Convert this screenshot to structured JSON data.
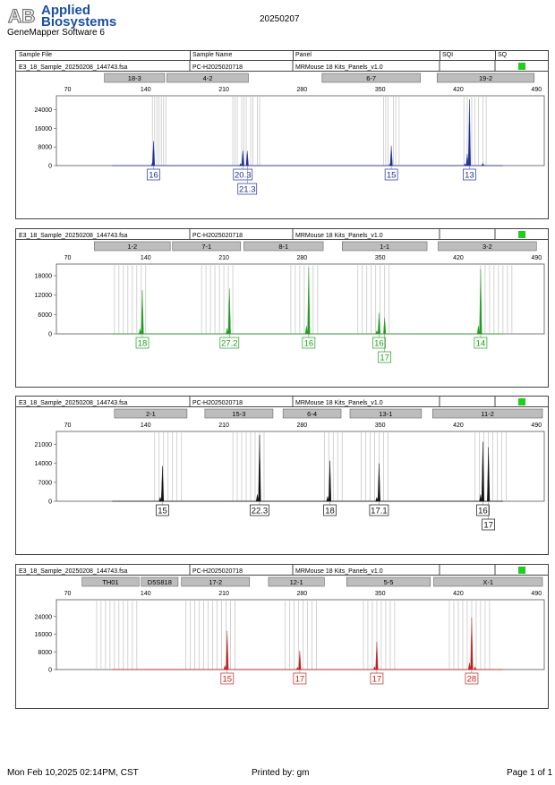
{
  "header": {
    "logo_mark": "AB",
    "logo_line1": "Applied",
    "logo_line2": "Biosystems",
    "software": "GeneMapper Software 6",
    "date": "20250207",
    "columns": [
      "Sample File",
      "Sample Name",
      "Panel",
      "SQI",
      "SQ"
    ]
  },
  "footer": {
    "printed_at": "Mon Feb 10,2025 02:14PM, CST",
    "printed_by": "Printed by: gm",
    "page": "Page 1 of 1"
  },
  "colors": {
    "blue": "#1f2f96",
    "green": "#1f9d1f",
    "black": "#111111",
    "red": "#c02020",
    "sq_ok": "#22cc22"
  },
  "chart_data": [
    {
      "type": "line",
      "sample_file": "E3_18_Sample_20250208_144743.fsa",
      "sample_name": "PC-H2025020718",
      "panel": "MRMouse 18 Kits_Panels_v1.0",
      "color": "blue",
      "x_ticks": [
        70,
        140,
        210,
        280,
        350,
        420,
        490
      ],
      "y_ticks": [
        0,
        8000,
        16000,
        24000
      ],
      "xlim": [
        60,
        497
      ],
      "ylim": [
        0,
        28500
      ],
      "markers": [
        {
          "label": "18-3",
          "start": 103,
          "end": 157
        },
        {
          "label": "4-2",
          "start": 159,
          "end": 232
        },
        {
          "label": "6-7",
          "start": 298,
          "end": 386
        },
        {
          "label": "19-2",
          "start": 401,
          "end": 488
        }
      ],
      "bins": [
        [
          146,
          148,
          150,
          152,
          154,
          156,
          158
        ],
        [
          218,
          220,
          222,
          226,
          228,
          230,
          234,
          236,
          240,
          242
        ],
        [
          353,
          355,
          357,
          362,
          364,
          367
        ],
        [
          425,
          428,
          432,
          435,
          438,
          442,
          445
        ]
      ],
      "peaks": [
        {
          "x": 147,
          "h": 10500
        },
        {
          "x": 146,
          "h": 1200
        },
        {
          "x": 227,
          "h": 6500
        },
        {
          "x": 231,
          "h": 6300
        },
        {
          "x": 225,
          "h": 900
        },
        {
          "x": 360,
          "h": 8500
        },
        {
          "x": 359,
          "h": 900
        },
        {
          "x": 430,
          "h": 28500
        },
        {
          "x": 428,
          "h": 5000
        },
        {
          "x": 426,
          "h": 800
        },
        {
          "x": 442,
          "h": 1000
        }
      ],
      "allele_labels": [
        {
          "text": "16",
          "x": 147,
          "row": 0
        },
        {
          "text": "20.3",
          "x": 227,
          "row": 0
        },
        {
          "text": "21.3",
          "x": 231,
          "row": 1
        },
        {
          "text": "15",
          "x": 360,
          "row": 0
        },
        {
          "text": "13",
          "x": 430,
          "row": 0
        }
      ]
    },
    {
      "type": "line",
      "sample_file": "E3_18_Sample_20250208_144743.fsa",
      "sample_name": "PC-H2025020718",
      "panel": "MRMouse 18 Kits_Panels_v1.0",
      "color": "green",
      "x_ticks": [
        70,
        140,
        210,
        280,
        350,
        420,
        490
      ],
      "y_ticks": [
        0,
        6000,
        12000,
        18000
      ],
      "xlim": [
        60,
        497
      ],
      "ylim": [
        0,
        20500
      ],
      "markers": [
        {
          "label": "1-2",
          "start": 94,
          "end": 162
        },
        {
          "label": "7-1",
          "start": 164,
          "end": 225
        },
        {
          "label": "8-1",
          "start": 228,
          "end": 299
        },
        {
          "label": "1-1",
          "start": 316,
          "end": 392
        },
        {
          "label": "3-2",
          "start": 402,
          "end": 490
        }
      ],
      "bins": [
        [
          112,
          116,
          120,
          124,
          128,
          132,
          136,
          140
        ],
        [
          190,
          194,
          198,
          202,
          206,
          210,
          214,
          218
        ],
        [
          270,
          274,
          278,
          282,
          286,
          290,
          294
        ],
        [
          330,
          334,
          338,
          342,
          346,
          350,
          354,
          358
        ],
        [
          440,
          444,
          448,
          452,
          456,
          460,
          464,
          468
        ]
      ],
      "peaks": [
        {
          "x": 137,
          "h": 13500
        },
        {
          "x": 135,
          "h": 1500
        },
        {
          "x": 215,
          "h": 14000
        },
        {
          "x": 213,
          "h": 1800
        },
        {
          "x": 286,
          "h": 20500
        },
        {
          "x": 284,
          "h": 2500
        },
        {
          "x": 349,
          "h": 6500
        },
        {
          "x": 354,
          "h": 5000
        },
        {
          "x": 347,
          "h": 1000
        },
        {
          "x": 440,
          "h": 20000
        },
        {
          "x": 438,
          "h": 2500
        }
      ],
      "allele_labels": [
        {
          "text": "18",
          "x": 137,
          "row": 0
        },
        {
          "text": "27.2",
          "x": 215,
          "row": 0
        },
        {
          "text": "16",
          "x": 286,
          "row": 0
        },
        {
          "text": "16",
          "x": 349,
          "row": 0
        },
        {
          "text": "17",
          "x": 354,
          "row": 1
        },
        {
          "text": "14",
          "x": 440,
          "row": 0
        }
      ]
    },
    {
      "type": "line",
      "sample_file": "E3_18_Sample_20250208_144743.fsa",
      "sample_name": "PC-H2025020718",
      "panel": "MRMouse 18 Kits_Panels_v1.0",
      "color": "black",
      "x_ticks": [
        70,
        140,
        210,
        280,
        350,
        420,
        490
      ],
      "y_ticks": [
        0,
        7000,
        14000,
        21000
      ],
      "xlim": [
        60,
        497
      ],
      "ylim": [
        0,
        24500
      ],
      "markers": [
        {
          "label": "2-1",
          "start": 112,
          "end": 177
        },
        {
          "label": "15-3",
          "start": 193,
          "end": 254
        },
        {
          "label": "6-4",
          "start": 263,
          "end": 315
        },
        {
          "label": "13-1",
          "start": 323,
          "end": 387
        },
        {
          "label": "11-2",
          "start": 397,
          "end": 507
        }
      ],
      "bins": [
        [
          148,
          152,
          156,
          160,
          164,
          168,
          172
        ],
        [
          218,
          222,
          226,
          230,
          234,
          238,
          242,
          246
        ],
        [
          300,
          304,
          308,
          312,
          316
        ],
        [
          333,
          337,
          341,
          345,
          349,
          353,
          357
        ],
        [
          435,
          439,
          443,
          447,
          451,
          455,
          459,
          463
        ]
      ],
      "peaks": [
        {
          "x": 155,
          "h": 13000
        },
        {
          "x": 153,
          "h": 1500
        },
        {
          "x": 242,
          "h": 24500
        },
        {
          "x": 240,
          "h": 2500
        },
        {
          "x": 305,
          "h": 15000
        },
        {
          "x": 303,
          "h": 1800
        },
        {
          "x": 349,
          "h": 14000
        },
        {
          "x": 347,
          "h": 1500
        },
        {
          "x": 442,
          "h": 22000
        },
        {
          "x": 447,
          "h": 20000
        },
        {
          "x": 440,
          "h": 2500
        }
      ],
      "allele_labels": [
        {
          "text": "15",
          "x": 155,
          "row": 0
        },
        {
          "text": "22.3",
          "x": 242,
          "row": 0
        },
        {
          "text": "18",
          "x": 305,
          "row": 0
        },
        {
          "text": "17.1",
          "x": 349,
          "row": 0
        },
        {
          "text": "16",
          "x": 442,
          "row": 0
        },
        {
          "text": "17",
          "x": 447,
          "row": 1
        }
      ]
    },
    {
      "type": "line",
      "sample_file": "E3_18_Sample_20250208_144743.fsa",
      "sample_name": "PC-H2025020718",
      "panel": "MRMouse 18 Kits_Panels_v1.0",
      "color": "red",
      "x_ticks": [
        70,
        140,
        210,
        280,
        350,
        420,
        490
      ],
      "y_ticks": [
        0,
        8000,
        16000,
        24000
      ],
      "xlim": [
        60,
        497
      ],
      "ylim": [
        0,
        30000
      ],
      "markers": [
        {
          "label": "TH01",
          "start": 83,
          "end": 134
        },
        {
          "label": "D5S818",
          "start": 136,
          "end": 169
        },
        {
          "label": "17-2",
          "start": 172,
          "end": 233
        },
        {
          "label": "12-1",
          "start": 250,
          "end": 300
        },
        {
          "label": "5-5",
          "start": 320,
          "end": 395
        },
        {
          "label": "X-1",
          "start": 398,
          "end": 498
        }
      ],
      "bins": [
        [
          96,
          100,
          104,
          108,
          112,
          116,
          120,
          124,
          128,
          132
        ],
        [
          176,
          180,
          184,
          188,
          192,
          196,
          200,
          204,
          208,
          212,
          216,
          220
        ],
        [
          265,
          269,
          273,
          277,
          281,
          285,
          289,
          293
        ],
        [
          335,
          339,
          343,
          347,
          351,
          355,
          359,
          363
        ],
        [
          412,
          416,
          420,
          424,
          428,
          432,
          436,
          440,
          444,
          448
        ]
      ],
      "peaks": [
        {
          "x": 213,
          "h": 17500
        },
        {
          "x": 211,
          "h": 1800
        },
        {
          "x": 278,
          "h": 8500
        },
        {
          "x": 276,
          "h": 1000
        },
        {
          "x": 347,
          "h": 12500
        },
        {
          "x": 345,
          "h": 1300
        },
        {
          "x": 432,
          "h": 23500
        },
        {
          "x": 430,
          "h": 3000
        },
        {
          "x": 435,
          "h": 1200
        }
      ],
      "allele_labels": [
        {
          "text": "15",
          "x": 213,
          "row": 0
        },
        {
          "text": "17",
          "x": 278,
          "row": 0
        },
        {
          "text": "17",
          "x": 347,
          "row": 0
        },
        {
          "text": "28",
          "x": 432,
          "row": 0
        }
      ]
    }
  ]
}
